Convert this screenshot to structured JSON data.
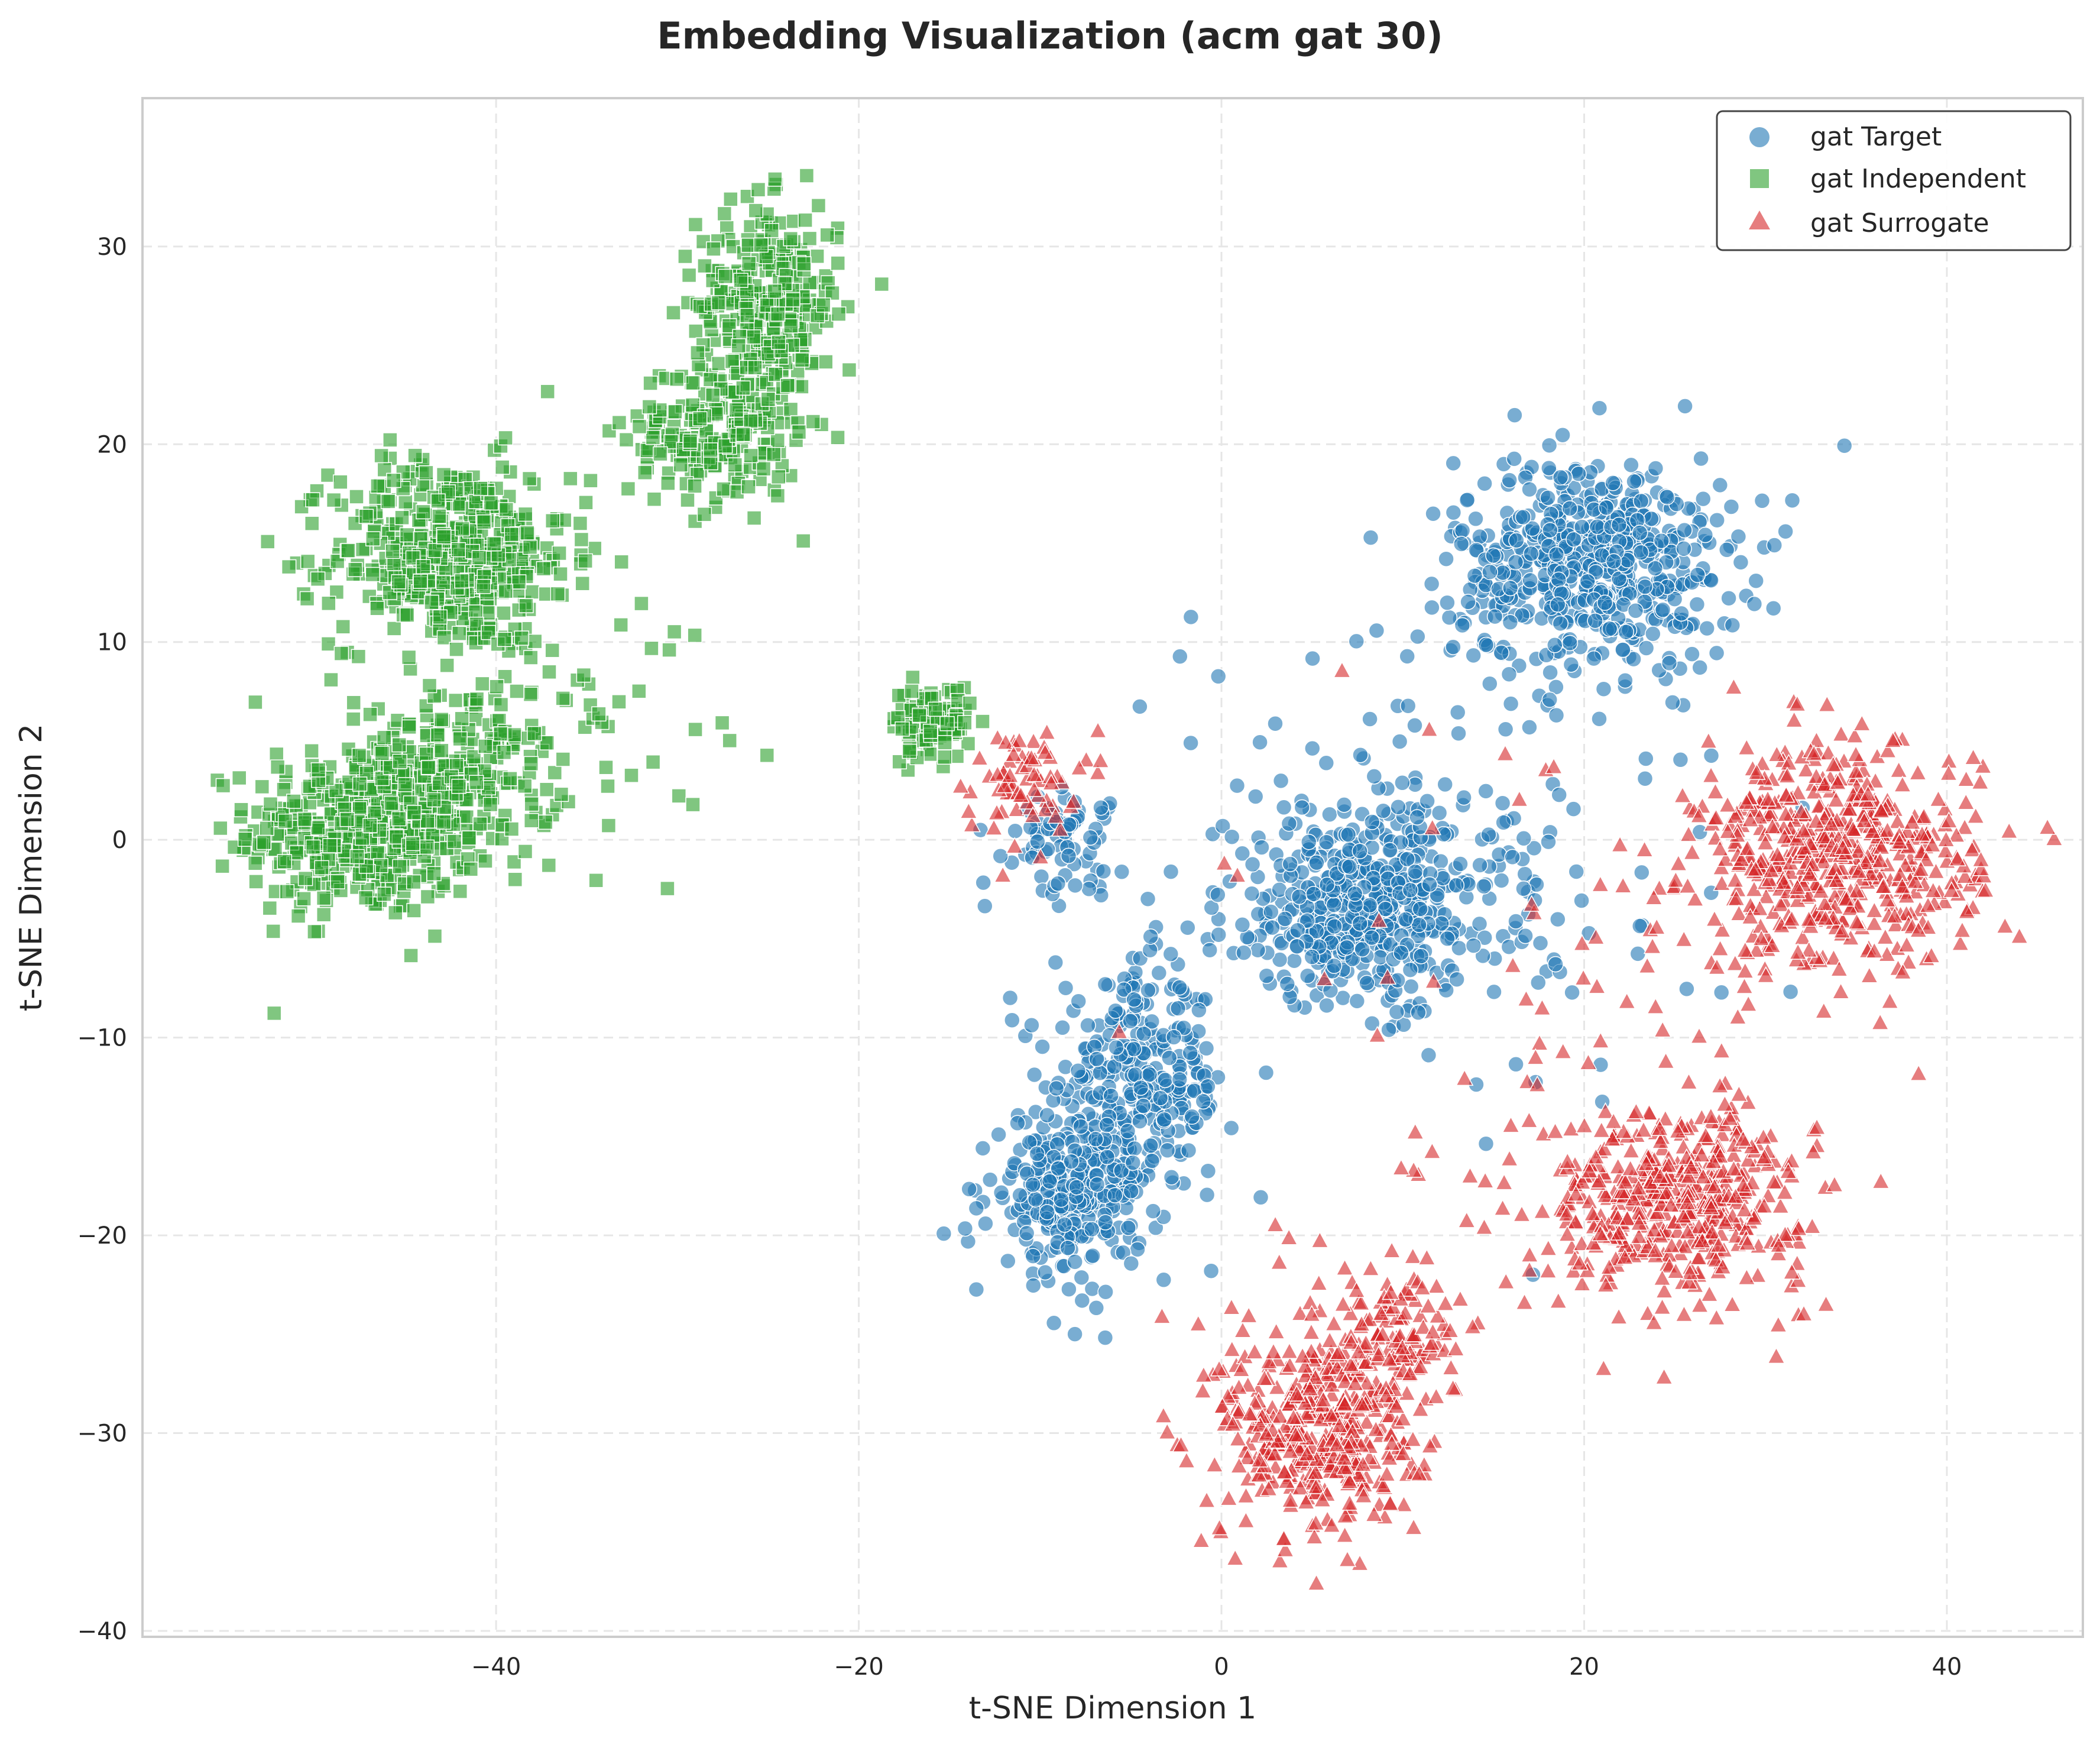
{
  "chart_data": {
    "type": "scatter",
    "title": "Embedding Visualization (acm gat 30)",
    "xlabel": "t-SNE Dimension 1",
    "ylabel": "t-SNE Dimension 2",
    "xlim": [
      -59.5,
      47.5
    ],
    "ylim": [
      -40.3,
      37.5
    ],
    "x_ticks": [
      -40,
      -20,
      0,
      20,
      40
    ],
    "y_ticks": [
      -40,
      -30,
      -20,
      -10,
      0,
      10,
      20,
      30
    ],
    "x_tick_labels": [
      "−40",
      "−20",
      "0",
      "20",
      "40"
    ],
    "y_tick_labels": [
      "−40",
      "−30",
      "−20",
      "−10",
      "0",
      "10",
      "20",
      "30"
    ],
    "grid": true,
    "legend_position": "top-right",
    "series": [
      {
        "name": "gat Target",
        "marker": "circle",
        "color": "#1f77b4",
        "clusters": [
          {
            "center": [
              20.5,
              14.0
            ],
            "spread": [
              4.5,
              3.2
            ],
            "count": 560
          },
          {
            "center": [
              8.0,
              -3.5
            ],
            "spread": [
              4.6,
              2.8
            ],
            "count": 480
          },
          {
            "center": [
              -4.5,
              -12.5
            ],
            "spread": [
              2.8,
              3.2
            ],
            "count": 300
          },
          {
            "center": [
              -8.5,
              -18.0
            ],
            "spread": [
              2.4,
              2.4
            ],
            "count": 260
          },
          {
            "center": [
              -9.0,
              0.0
            ],
            "spread": [
              2.0,
              1.6
            ],
            "count": 70
          },
          {
            "center": [
              12.0,
              0.0
            ],
            "spread": [
              9.0,
              8.0
            ],
            "count": 140
          }
        ]
      },
      {
        "name": "gat Independent",
        "marker": "square",
        "color": "#2ca02c",
        "clusters": [
          {
            "center": [
              -47.5,
              0.5
            ],
            "spread": [
              3.6,
              2.6
            ],
            "count": 430
          },
          {
            "center": [
              -42.0,
              3.0
            ],
            "spread": [
              3.2,
              2.4
            ],
            "count": 200
          },
          {
            "center": [
              -42.5,
              14.5
            ],
            "spread": [
              3.8,
              2.8
            ],
            "count": 460
          },
          {
            "center": [
              -25.0,
              27.0
            ],
            "spread": [
              2.3,
              3.0
            ],
            "count": 300
          },
          {
            "center": [
              -28.0,
              20.5
            ],
            "spread": [
              2.8,
              2.2
            ],
            "count": 200
          },
          {
            "center": [
              -16.0,
              6.0
            ],
            "spread": [
              1.3,
              1.1
            ],
            "count": 90
          },
          {
            "center": [
              -38.0,
              8.0
            ],
            "spread": [
              6.0,
              5.0
            ],
            "count": 90
          }
        ]
      },
      {
        "name": "gat Surrogate",
        "marker": "triangle",
        "color": "#d62728",
        "clusters": [
          {
            "center": [
              34.0,
              -1.0
            ],
            "spread": [
              4.6,
              3.4
            ],
            "count": 560
          },
          {
            "center": [
              25.0,
              -18.0
            ],
            "spread": [
              4.2,
              2.6
            ],
            "count": 460
          },
          {
            "center": [
              5.5,
              -30.0
            ],
            "spread": [
              3.2,
              3.2
            ],
            "count": 420
          },
          {
            "center": [
              9.5,
              -25.0
            ],
            "spread": [
              2.2,
              2.2
            ],
            "count": 120
          },
          {
            "center": [
              -11.0,
              3.0
            ],
            "spread": [
              1.8,
              1.6
            ],
            "count": 70
          },
          {
            "center": [
              18.0,
              -10.0
            ],
            "spread": [
              10.0,
              9.0
            ],
            "count": 90
          }
        ]
      }
    ]
  }
}
